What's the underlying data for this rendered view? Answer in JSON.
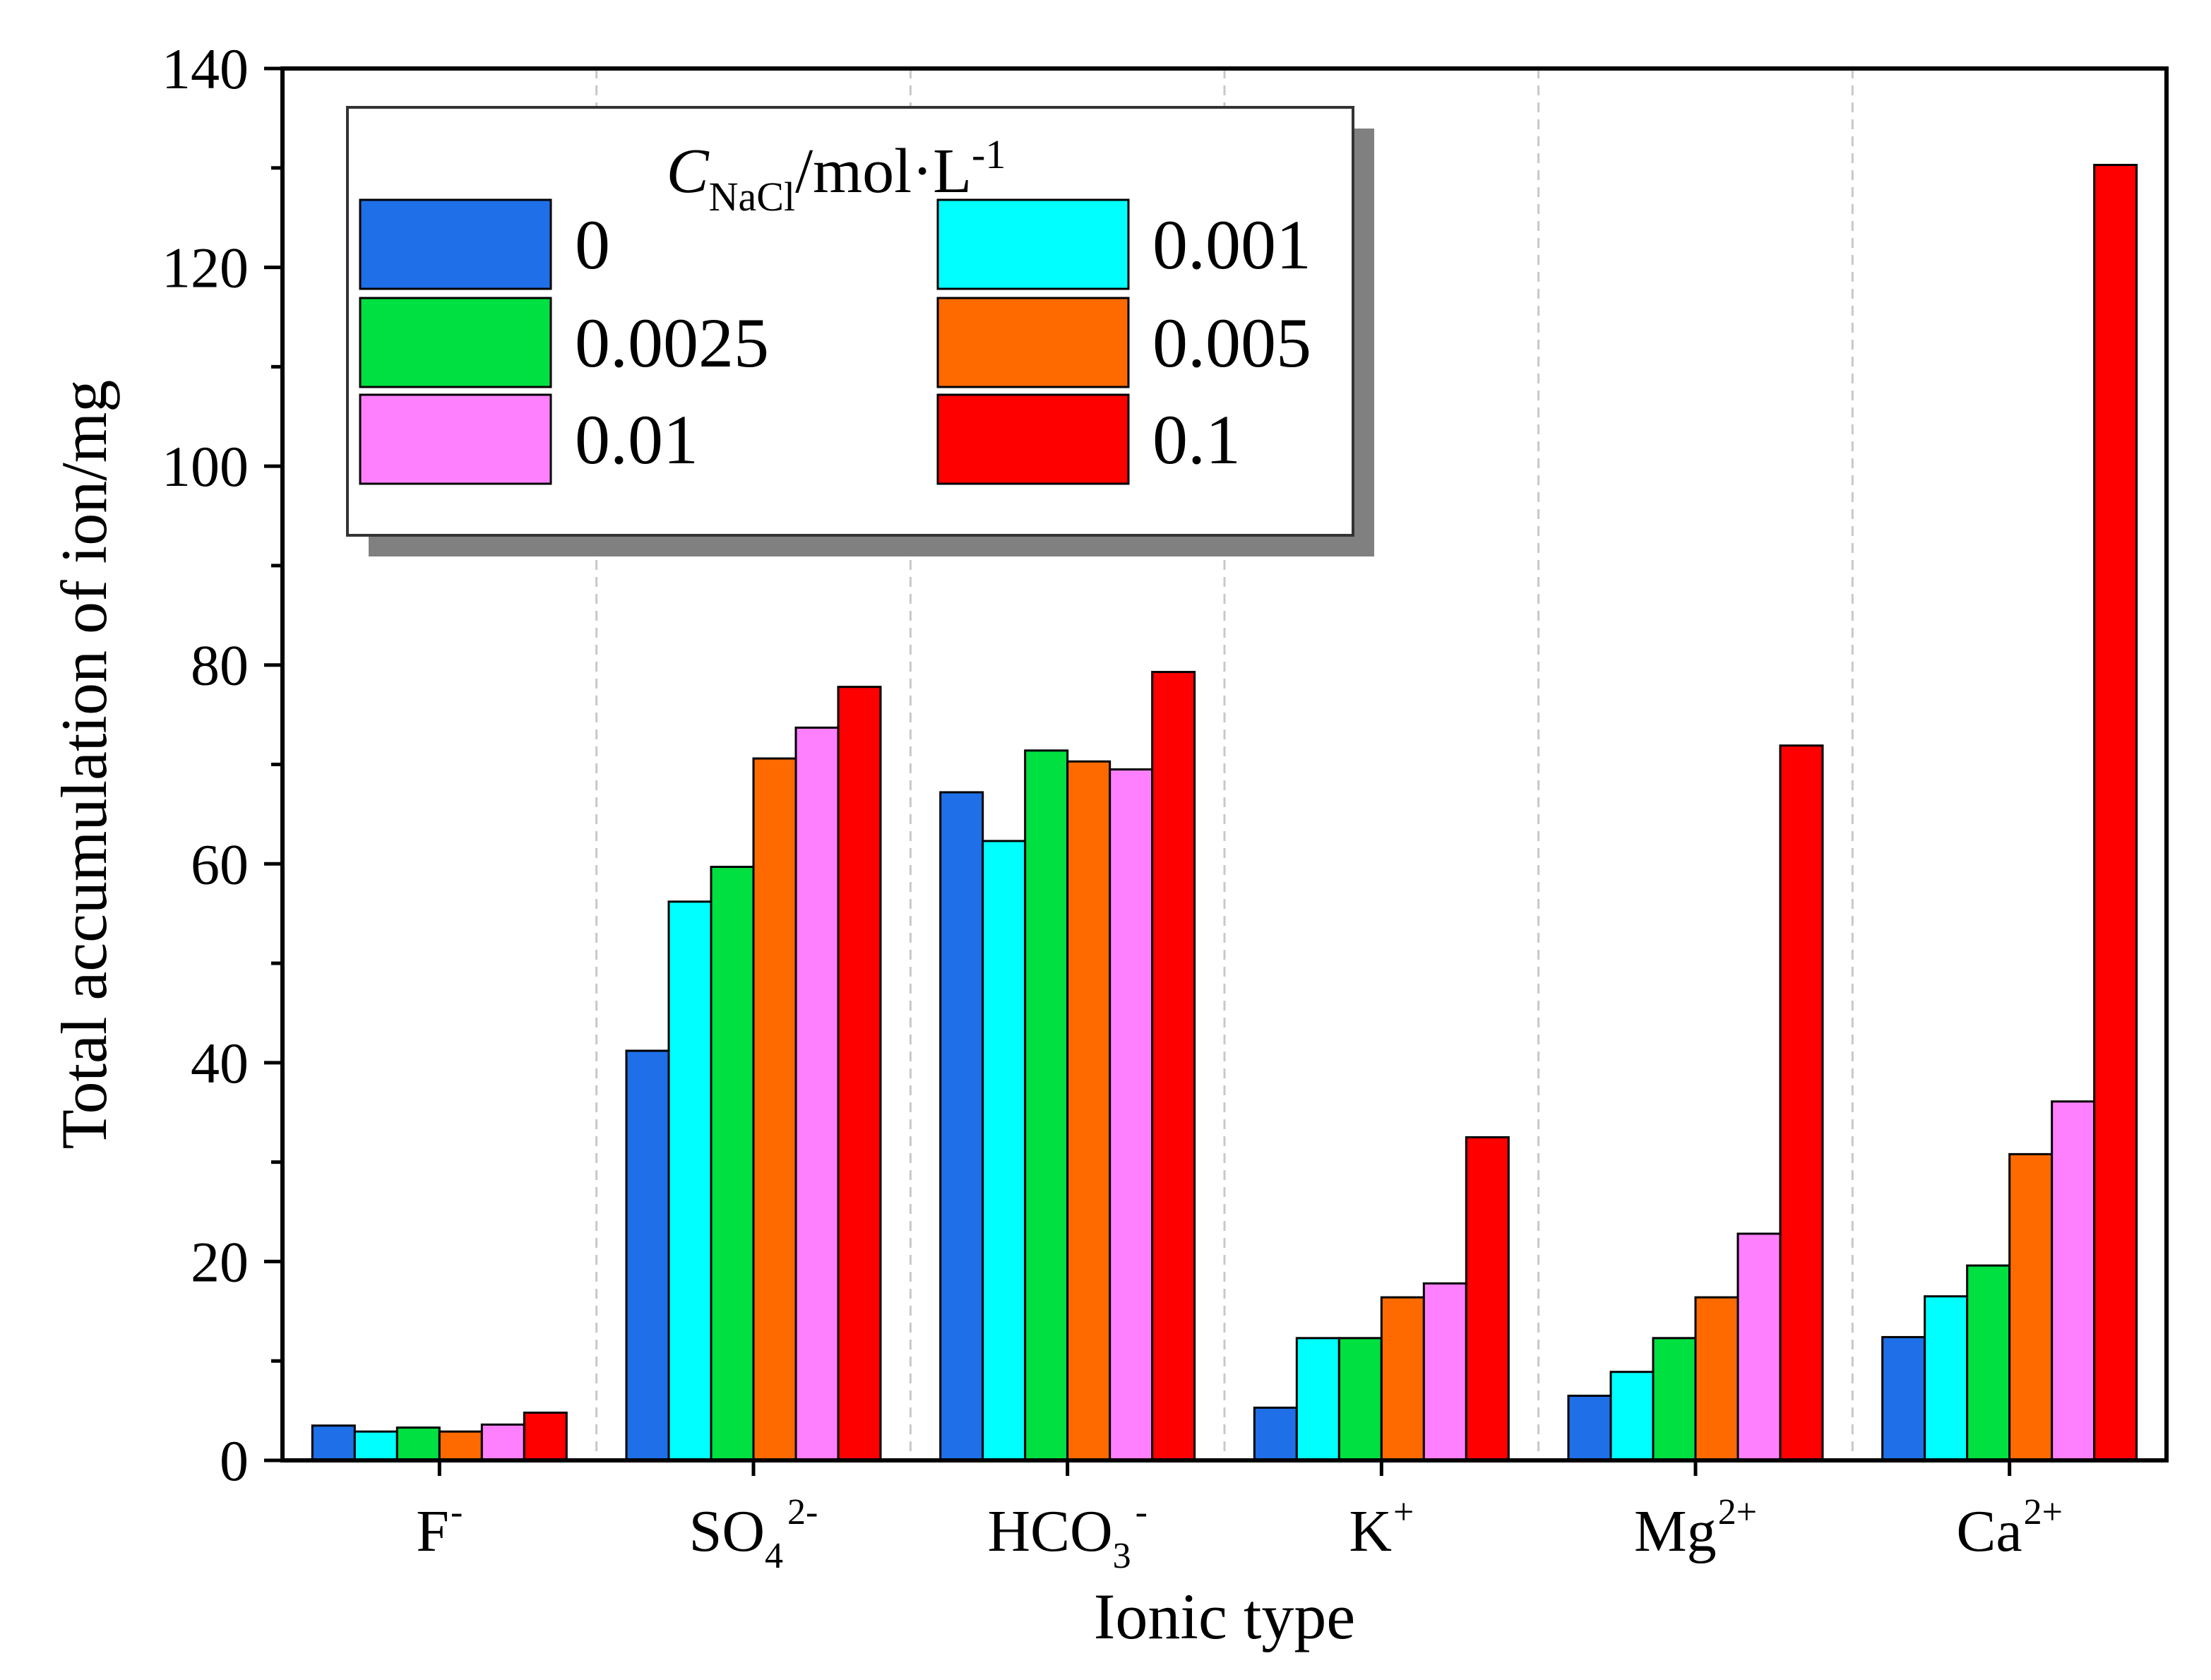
{
  "chart_data": {
    "type": "bar",
    "title": "",
    "xlabel": "Ionic type",
    "ylabel": "Total accumulation of ion/mg",
    "ylim": [
      0,
      140
    ],
    "yticks": [
      "0",
      "20",
      "40",
      "60",
      "80",
      "100",
      "120",
      "140"
    ],
    "categories": [
      {
        "base": "F",
        "sub": "",
        "sup": "-"
      },
      {
        "base": "SO",
        "sub": "4",
        "sup": "2-"
      },
      {
        "base": "HCO",
        "sub": "3",
        "sup": "-"
      },
      {
        "base": "K",
        "sub": "",
        "sup": "+"
      },
      {
        "base": "Mg",
        "sub": "",
        "sup": "2+"
      },
      {
        "base": "Ca",
        "sub": "",
        "sup": "2+"
      }
    ],
    "legend": {
      "title_main": "C",
      "title_sub": "NaCl",
      "title_unit": "/mol·L",
      "title_sup": "-1",
      "placement": "top-left",
      "columns": 2
    },
    "grid": "vertical dashed separators between categories",
    "series": [
      {
        "name": "0",
        "color": "#1f6fe8",
        "values": [
          3.5,
          41.2,
          67.2,
          5.3,
          6.5,
          12.4
        ]
      },
      {
        "name": "0.001",
        "color": "#00ffff",
        "values": [
          2.9,
          56.2,
          62.3,
          12.3,
          8.9,
          16.5
        ]
      },
      {
        "name": "0.0025",
        "color": "#00e040",
        "values": [
          3.3,
          59.7,
          71.4,
          12.3,
          12.3,
          19.6
        ]
      },
      {
        "name": "0.005",
        "color": "#ff6a00",
        "values": [
          2.9,
          70.6,
          70.3,
          16.4,
          16.4,
          30.8
        ]
      },
      {
        "name": "0.01",
        "color": "#ff80ff",
        "values": [
          3.6,
          73.7,
          69.5,
          17.8,
          22.8,
          36.1
        ]
      },
      {
        "name": "0.1",
        "color": "#ff0000",
        "values": [
          4.8,
          77.8,
          79.3,
          32.5,
          71.9,
          130.3
        ]
      }
    ]
  }
}
